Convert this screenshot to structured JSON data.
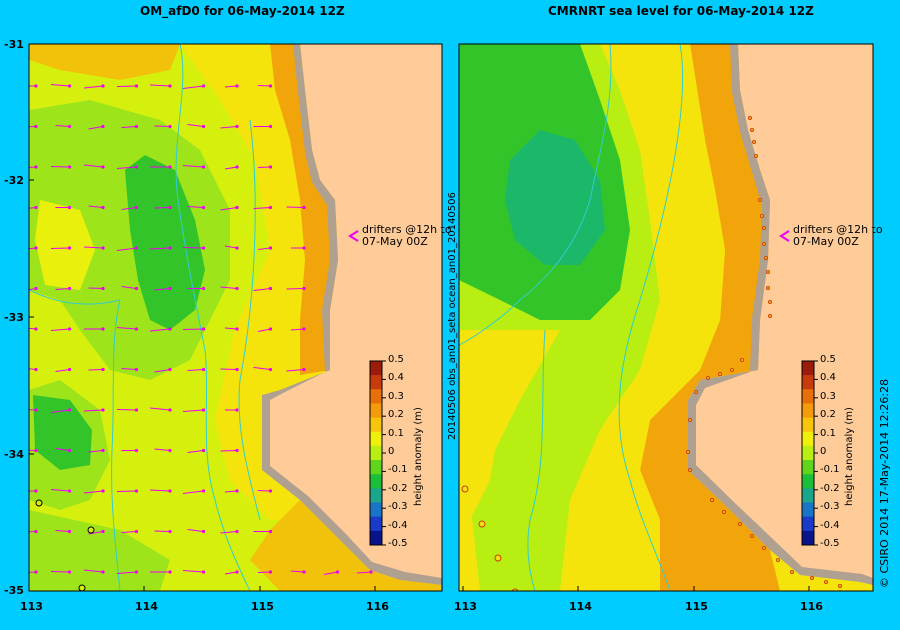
{
  "left_panel": {
    "title": "OM_afD0  for 06-May-2014 12Z",
    "drifter_note": [
      "drifters @12h to",
      "07-May 00Z"
    ]
  },
  "right_panel": {
    "title": "CMRNRT sea level  for 06-May-2014 12Z",
    "side_label": "20140506 obs_an01_seta ocean_an01_20140506",
    "drifter_note": [
      "drifters @12h to",
      "07-May 00Z"
    ]
  },
  "y_ticks": [
    "-31",
    "-32",
    "-33",
    "-34",
    "-35"
  ],
  "x_ticks": [
    "113",
    "114",
    "115",
    "116"
  ],
  "colorbar": {
    "label": "height anomaly (m)",
    "ticks": [
      "0.5",
      "0.4",
      "0.3",
      "0.2",
      "0.1",
      "0",
      "-0.1",
      "-0.2",
      "-0.3",
      "-0.4",
      "-0.5"
    ],
    "colors": [
      "#9b1b0c",
      "#c83c0c",
      "#e8700a",
      "#f59a0a",
      "#f7c60c",
      "#eef00c",
      "#b8ee12",
      "#5fd61a",
      "#1bbf3a",
      "#1aa68a",
      "#1c74c8",
      "#1a3bc8",
      "#0a148a"
    ]
  },
  "credit": "© CSIRO 2014   17-May-2014 12:26:28",
  "colors": {
    "background": "#00ccff",
    "land": "#ffcc99",
    "coast": "#b0a090",
    "arrow": "#ee00ee"
  }
}
